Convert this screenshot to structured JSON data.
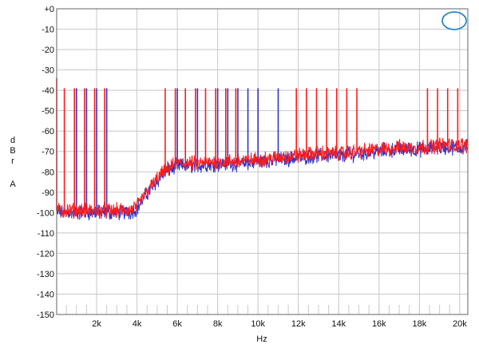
{
  "chart_data": {
    "type": "line",
    "xlabel": "Hz",
    "ylabel": [
      "d",
      "B",
      "r",
      "A"
    ],
    "xlim": [
      20,
      20400
    ],
    "ylim": [
      -150,
      0
    ],
    "x_ticks": [
      2000,
      4000,
      6000,
      8000,
      10000,
      12000,
      14000,
      16000,
      18000,
      20000
    ],
    "x_tick_labels": [
      "2k",
      "4k",
      "6k",
      "8k",
      "10k",
      "12k",
      "14k",
      "16k",
      "18k",
      "20k"
    ],
    "y_ticks": [
      0,
      -10,
      -20,
      -30,
      -40,
      -50,
      -60,
      -70,
      -80,
      -90,
      -100,
      -110,
      -120,
      -130,
      -140,
      -150
    ],
    "y_tick_labels": [
      "+0",
      "-10",
      "-20",
      "-30",
      "-40",
      "-50",
      "-60",
      "-70",
      "-80",
      "-90",
      "-100",
      "-110",
      "-120",
      "-130",
      "-140",
      "-150"
    ],
    "grid": true,
    "logo": "AP",
    "series": [
      {
        "color": "#2f36c8",
        "noise_floor": {
          "x": [
            20,
            500,
            1000,
            2000,
            3000,
            3600,
            4000,
            4400,
            4800,
            5200,
            5600,
            6000,
            7000,
            8000,
            9000,
            10000,
            11000,
            12000,
            13000,
            14000,
            15000,
            16000,
            17000,
            18000,
            19000,
            20000,
            20400
          ],
          "y": [
            -100,
            -100,
            -100,
            -100,
            -100,
            -100,
            -98,
            -92,
            -87,
            -82,
            -79,
            -77,
            -77,
            -76,
            -76,
            -75,
            -74,
            -73,
            -72,
            -72,
            -71,
            -70,
            -69,
            -69,
            -68,
            -68,
            -68
          ]
        },
        "spikes": {
          "x": [
            1000,
            1500,
            2000,
            2500,
            6000,
            7000,
            8000,
            8500,
            9000,
            9500,
            10000,
            11000
          ],
          "y": [
            -39,
            -39,
            -39,
            -39,
            -39,
            -39,
            -39,
            -39,
            -39,
            -39,
            -39,
            -39
          ]
        }
      },
      {
        "color": "#ff1a1a",
        "noise_floor": {
          "x": [
            20,
            500,
            1000,
            2000,
            3000,
            3600,
            4000,
            4400,
            4800,
            5200,
            5600,
            6000,
            7000,
            8000,
            9000,
            10000,
            11000,
            12000,
            13000,
            14000,
            15000,
            16000,
            17000,
            18000,
            19000,
            20000,
            20400
          ],
          "y": [
            -99,
            -99,
            -99,
            -99,
            -99,
            -99,
            -97,
            -91,
            -86,
            -81,
            -78,
            -76,
            -76,
            -75,
            -75,
            -74,
            -73,
            -72,
            -71,
            -71,
            -70,
            -69,
            -68,
            -68,
            -67,
            -67,
            -67
          ]
        },
        "spikes": {
          "x": [
            20,
            400,
            900,
            1400,
            1900,
            2400,
            5400,
            5900,
            6400,
            6900,
            7400,
            7900,
            8400,
            8900,
            11900,
            12400,
            12900,
            13400,
            13900,
            14400,
            14900,
            18400,
            18900,
            19400,
            19900
          ],
          "y": [
            -34,
            -39,
            -39,
            -39,
            -39,
            -39,
            -39,
            -39,
            -39,
            -39,
            -39,
            -39,
            -39,
            -39,
            -39,
            -39,
            -39,
            -39,
            -39,
            -39,
            -39,
            -39,
            -39,
            -39,
            -39
          ]
        }
      }
    ]
  }
}
